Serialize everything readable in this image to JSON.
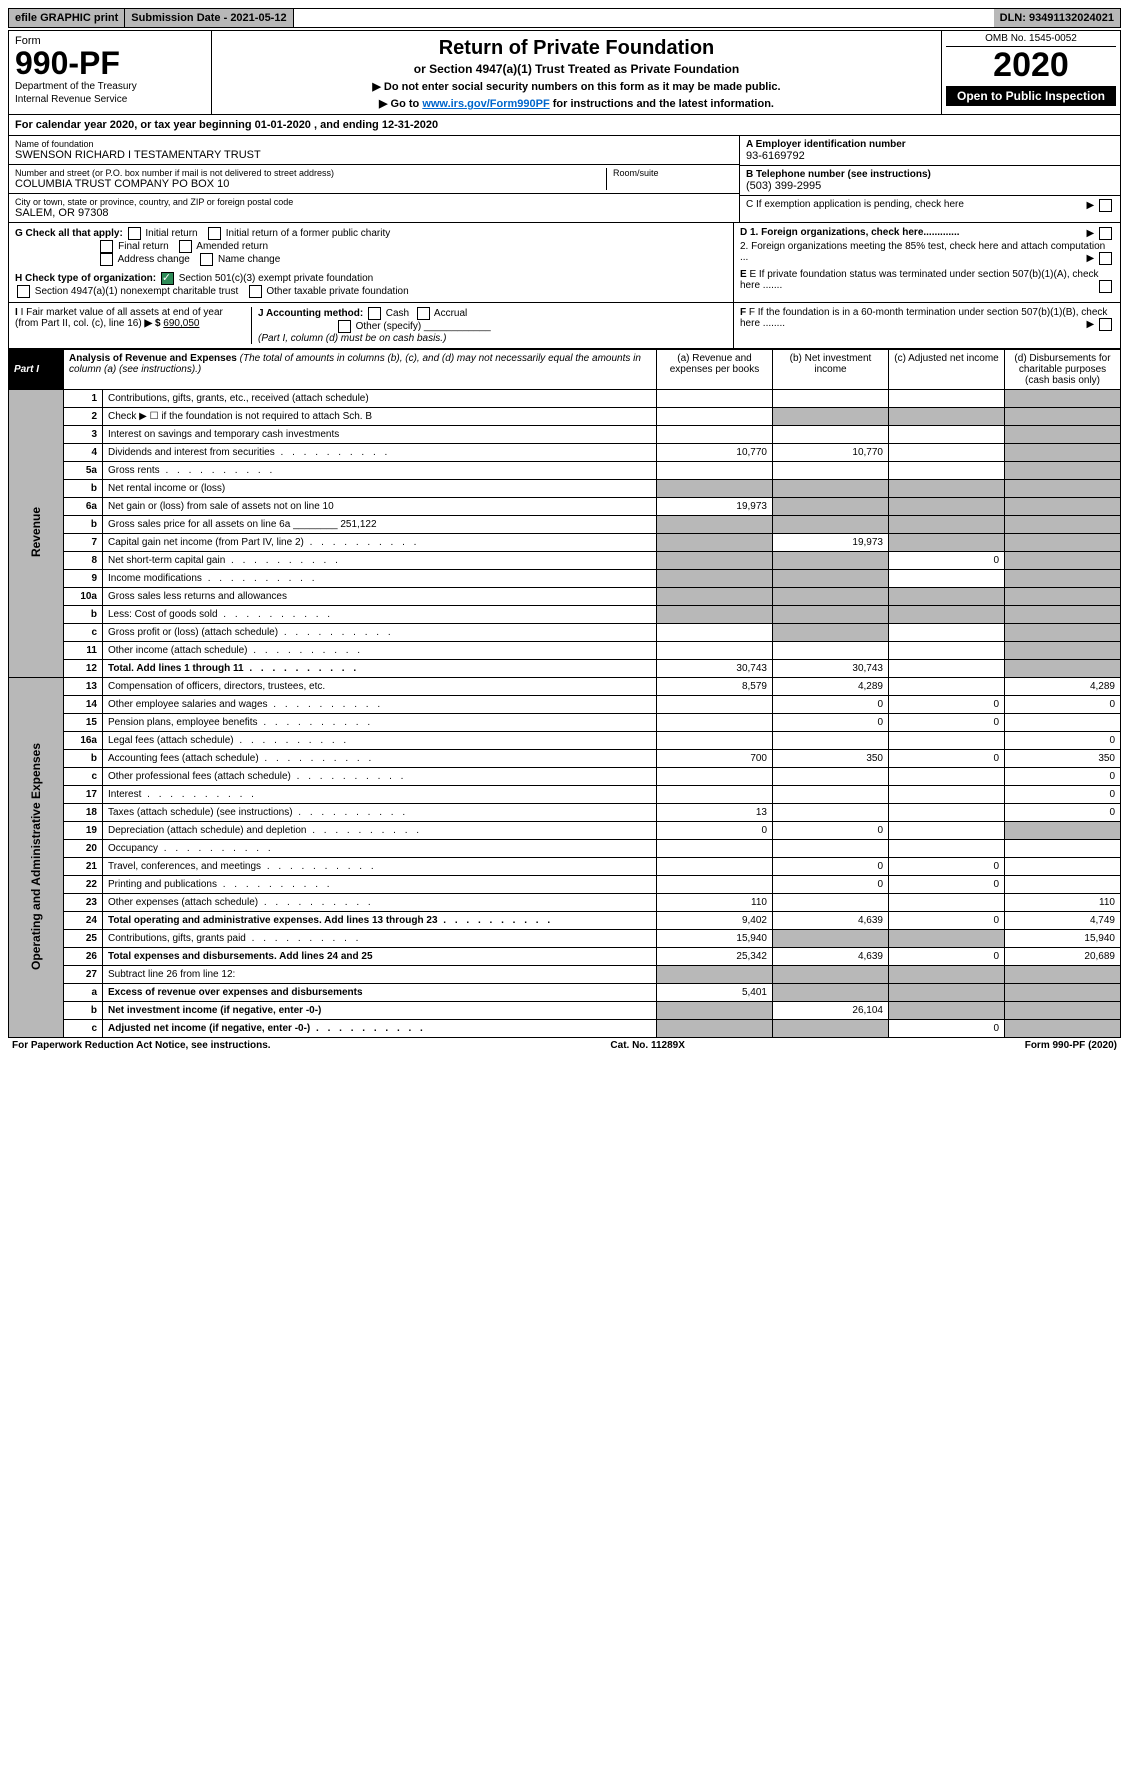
{
  "top": {
    "efile": "efile GRAPHIC print",
    "submission": "Submission Date - 2021-05-12",
    "dln": "DLN: 93491132024021"
  },
  "header": {
    "form_label": "Form",
    "form_number": "990-PF",
    "dept": "Department of the Treasury",
    "irs": "Internal Revenue Service",
    "title": "Return of Private Foundation",
    "subtitle": "or Section 4947(a)(1) Trust Treated as Private Foundation",
    "note1": "▶ Do not enter social security numbers on this form as it may be made public.",
    "note2_pre": "▶ Go to ",
    "note2_link": "www.irs.gov/Form990PF",
    "note2_post": " for instructions and the latest information.",
    "omb": "OMB No. 1545-0052",
    "year": "2020",
    "open": "Open to Public Inspection"
  },
  "calendar": {
    "pre": "For calendar year 2020, or tax year beginning ",
    "begin": "01-01-2020",
    "mid": " , and ending ",
    "end": "12-31-2020"
  },
  "entity": {
    "name_label": "Name of foundation",
    "name": "SWENSON RICHARD I TESTAMENTARY TRUST",
    "addr_label": "Number and street (or P.O. box number if mail is not delivered to street address)",
    "addr": "COLUMBIA TRUST COMPANY PO BOX 10",
    "room_label": "Room/suite",
    "city_label": "City or town, state or province, country, and ZIP or foreign postal code",
    "city": "SALEM, OR  97308",
    "ein_label": "A Employer identification number",
    "ein": "93-6169792",
    "phone_label": "B Telephone number (see instructions)",
    "phone": "(503) 399-2995",
    "c_label": "C If exemption application is pending, check here",
    "d1": "D 1. Foreign organizations, check here.............",
    "d2": "2. Foreign organizations meeting the 85% test, check here and attach computation ...",
    "e": "E If private foundation status was terminated under section 507(b)(1)(A), check here .......",
    "f": "F If the foundation is in a 60-month termination under section 507(b)(1)(B), check here ........"
  },
  "g": {
    "label": "G Check all that apply:",
    "opts": [
      "Initial return",
      "Initial return of a former public charity",
      "Final return",
      "Amended return",
      "Address change",
      "Name change"
    ]
  },
  "h": {
    "label": "H Check type of organization:",
    "opt1": "Section 501(c)(3) exempt private foundation",
    "opt2": "Section 4947(a)(1) nonexempt charitable trust",
    "opt3": "Other taxable private foundation"
  },
  "i": {
    "label": "I Fair market value of all assets at end of year (from Part II, col. (c), line 16)",
    "value": "690,050"
  },
  "j": {
    "label": "J Accounting method:",
    "opts": [
      "Cash",
      "Accrual"
    ],
    "other": "Other (specify)",
    "note": "(Part I, column (d) must be on cash basis.)"
  },
  "part1": {
    "label": "Part I",
    "title": "Analysis of Revenue and Expenses",
    "note": "(The total of amounts in columns (b), (c), and (d) may not necessarily equal the amounts in column (a) (see instructions).)",
    "col_a": "(a) Revenue and expenses per books",
    "col_b": "(b) Net investment income",
    "col_c": "(c) Adjusted net income",
    "col_d": "(d) Disbursements for charitable purposes (cash basis only)"
  },
  "sections": {
    "revenue": "Revenue",
    "expenses": "Operating and Administrative Expenses"
  },
  "rows": [
    {
      "n": "1",
      "desc": "Contributions, gifts, grants, etc., received (attach schedule)",
      "a": "",
      "b": "",
      "c": "",
      "d": "",
      "sd": true
    },
    {
      "n": "2",
      "desc": "Check ▶ ☐ if the foundation is not required to attach Sch. B",
      "a": "",
      "b": "",
      "c": "",
      "d": "",
      "sd": true,
      "sb": true,
      "sc": true
    },
    {
      "n": "3",
      "desc": "Interest on savings and temporary cash investments",
      "a": "",
      "b": "",
      "c": "",
      "d": "",
      "sd": true
    },
    {
      "n": "4",
      "desc": "Dividends and interest from securities",
      "a": "10,770",
      "b": "10,770",
      "c": "",
      "d": "",
      "sd": true,
      "dots": true
    },
    {
      "n": "5a",
      "desc": "Gross rents",
      "a": "",
      "b": "",
      "c": "",
      "d": "",
      "sd": true,
      "dots": true
    },
    {
      "n": "b",
      "desc": "Net rental income or (loss)",
      "a": "",
      "b": "",
      "c": "",
      "d": "",
      "sa": true,
      "sb": true,
      "sc": true,
      "sd": true
    },
    {
      "n": "6a",
      "desc": "Net gain or (loss) from sale of assets not on line 10",
      "a": "19,973",
      "b": "",
      "c": "",
      "d": "",
      "sb": true,
      "sc": true,
      "sd": true
    },
    {
      "n": "b",
      "desc": "Gross sales price for all assets on line 6a ________ 251,122",
      "a": "",
      "b": "",
      "c": "",
      "d": "",
      "sa": true,
      "sb": true,
      "sc": true,
      "sd": true
    },
    {
      "n": "7",
      "desc": "Capital gain net income (from Part IV, line 2)",
      "a": "",
      "b": "19,973",
      "c": "",
      "d": "",
      "sa": true,
      "sc": true,
      "sd": true,
      "dots": true
    },
    {
      "n": "8",
      "desc": "Net short-term capital gain",
      "a": "",
      "b": "",
      "c": "0",
      "d": "",
      "sa": true,
      "sb": true,
      "sd": true,
      "dots": true
    },
    {
      "n": "9",
      "desc": "Income modifications",
      "a": "",
      "b": "",
      "c": "",
      "d": "",
      "sa": true,
      "sb": true,
      "sd": true,
      "dots": true
    },
    {
      "n": "10a",
      "desc": "Gross sales less returns and allowances",
      "a": "",
      "b": "",
      "c": "",
      "d": "",
      "sa": true,
      "sb": true,
      "sc": true,
      "sd": true
    },
    {
      "n": "b",
      "desc": "Less: Cost of goods sold",
      "a": "",
      "b": "",
      "c": "",
      "d": "",
      "sa": true,
      "sb": true,
      "sc": true,
      "sd": true,
      "dots": true
    },
    {
      "n": "c",
      "desc": "Gross profit or (loss) (attach schedule)",
      "a": "",
      "b": "",
      "c": "",
      "d": "",
      "sb": true,
      "sd": true,
      "dots": true
    },
    {
      "n": "11",
      "desc": "Other income (attach schedule)",
      "a": "",
      "b": "",
      "c": "",
      "d": "",
      "sd": true,
      "dots": true
    },
    {
      "n": "12",
      "desc": "Total. Add lines 1 through 11",
      "a": "30,743",
      "b": "30,743",
      "c": "",
      "d": "",
      "sd": true,
      "bold": true,
      "dots": true
    }
  ],
  "exp_rows": [
    {
      "n": "13",
      "desc": "Compensation of officers, directors, trustees, etc.",
      "a": "8,579",
      "b": "4,289",
      "c": "",
      "d": "4,289"
    },
    {
      "n": "14",
      "desc": "Other employee salaries and wages",
      "a": "",
      "b": "0",
      "c": "0",
      "d": "0",
      "dots": true
    },
    {
      "n": "15",
      "desc": "Pension plans, employee benefits",
      "a": "",
      "b": "0",
      "c": "0",
      "d": "",
      "dots": true
    },
    {
      "n": "16a",
      "desc": "Legal fees (attach schedule)",
      "a": "",
      "b": "",
      "c": "",
      "d": "0",
      "dots": true
    },
    {
      "n": "b",
      "desc": "Accounting fees (attach schedule)",
      "a": "700",
      "b": "350",
      "c": "0",
      "d": "350",
      "dots": true
    },
    {
      "n": "c",
      "desc": "Other professional fees (attach schedule)",
      "a": "",
      "b": "",
      "c": "",
      "d": "0",
      "dots": true
    },
    {
      "n": "17",
      "desc": "Interest",
      "a": "",
      "b": "",
      "c": "",
      "d": "0",
      "dots": true
    },
    {
      "n": "18",
      "desc": "Taxes (attach schedule) (see instructions)",
      "a": "13",
      "b": "",
      "c": "",
      "d": "0",
      "dots": true
    },
    {
      "n": "19",
      "desc": "Depreciation (attach schedule) and depletion",
      "a": "0",
      "b": "0",
      "c": "",
      "d": "",
      "sd": true,
      "dots": true
    },
    {
      "n": "20",
      "desc": "Occupancy",
      "a": "",
      "b": "",
      "c": "",
      "d": "",
      "dots": true
    },
    {
      "n": "21",
      "desc": "Travel, conferences, and meetings",
      "a": "",
      "b": "0",
      "c": "0",
      "d": "",
      "dots": true
    },
    {
      "n": "22",
      "desc": "Printing and publications",
      "a": "",
      "b": "0",
      "c": "0",
      "d": "",
      "dots": true
    },
    {
      "n": "23",
      "desc": "Other expenses (attach schedule)",
      "a": "110",
      "b": "",
      "c": "",
      "d": "110",
      "dots": true
    },
    {
      "n": "24",
      "desc": "Total operating and administrative expenses. Add lines 13 through 23",
      "a": "9,402",
      "b": "4,639",
      "c": "0",
      "d": "4,749",
      "bold": true,
      "dots": true
    },
    {
      "n": "25",
      "desc": "Contributions, gifts, grants paid",
      "a": "15,940",
      "b": "",
      "c": "",
      "d": "15,940",
      "sb": true,
      "sc": true,
      "dots": true
    },
    {
      "n": "26",
      "desc": "Total expenses and disbursements. Add lines 24 and 25",
      "a": "25,342",
      "b": "4,639",
      "c": "0",
      "d": "20,689",
      "bold": true
    },
    {
      "n": "27",
      "desc": "Subtract line 26 from line 12:",
      "a": "",
      "b": "",
      "c": "",
      "d": "",
      "sa": true,
      "sb": true,
      "sc": true,
      "sd": true
    },
    {
      "n": "a",
      "desc": "Excess of revenue over expenses and disbursements",
      "a": "5,401",
      "b": "",
      "c": "",
      "d": "",
      "sb": true,
      "sc": true,
      "sd": true,
      "bold": true
    },
    {
      "n": "b",
      "desc": "Net investment income (if negative, enter -0-)",
      "a": "",
      "b": "26,104",
      "c": "",
      "d": "",
      "sa": true,
      "sc": true,
      "sd": true,
      "bold": true
    },
    {
      "n": "c",
      "desc": "Adjusted net income (if negative, enter -0-)",
      "a": "",
      "b": "",
      "c": "0",
      "d": "",
      "sa": true,
      "sb": true,
      "sd": true,
      "bold": true,
      "dots": true
    }
  ],
  "footer": {
    "left": "For Paperwork Reduction Act Notice, see instructions.",
    "mid": "Cat. No. 11289X",
    "right": "Form 990-PF (2020)"
  }
}
